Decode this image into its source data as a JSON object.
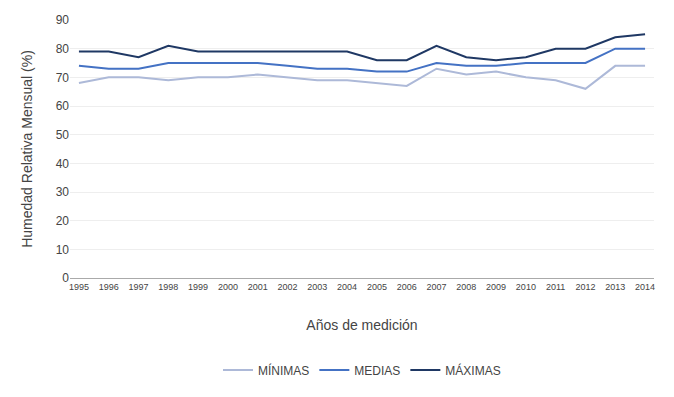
{
  "chart_data": {
    "type": "line",
    "x": [
      1995,
      1996,
      1997,
      1998,
      1999,
      2000,
      2001,
      2002,
      2003,
      2004,
      2005,
      2006,
      2007,
      2008,
      2009,
      2010,
      2011,
      2012,
      2013,
      2014
    ],
    "series": [
      {
        "name": "MÍNIMAS",
        "color": "#adb9d8",
        "values": [
          68,
          70,
          70,
          69,
          70,
          70,
          71,
          70,
          69,
          69,
          68,
          67,
          73,
          71,
          72,
          70,
          69,
          66,
          74,
          74
        ]
      },
      {
        "name": "MEDIAS",
        "color": "#4472c4",
        "values": [
          74,
          73,
          73,
          75,
          75,
          75,
          75,
          74,
          73,
          73,
          72,
          72,
          75,
          74,
          74,
          75,
          75,
          75,
          80,
          80
        ]
      },
      {
        "name": "MÁXIMAS",
        "color": "#1f3864",
        "values": [
          79,
          79,
          77,
          81,
          79,
          79,
          79,
          79,
          79,
          79,
          76,
          76,
          81,
          77,
          76,
          77,
          80,
          80,
          84,
          85
        ]
      }
    ],
    "x_label": "Años de medición",
    "y_label": "Humedad Relativa Mensual (%)",
    "xlim": [
      1994.7,
      2014.3
    ],
    "xticks": [
      1995,
      1996,
      1997,
      1998,
      1999,
      2000,
      2001,
      2002,
      2003,
      2004,
      2005,
      2006,
      2007,
      2008,
      2009,
      2010,
      2011,
      2012,
      2013,
      2014
    ],
    "ylim": [
      0,
      90
    ],
    "yticks": [
      0,
      10,
      20,
      30,
      40,
      50,
      60,
      70,
      80,
      90
    ],
    "grid": "y",
    "legend": "bottom"
  }
}
